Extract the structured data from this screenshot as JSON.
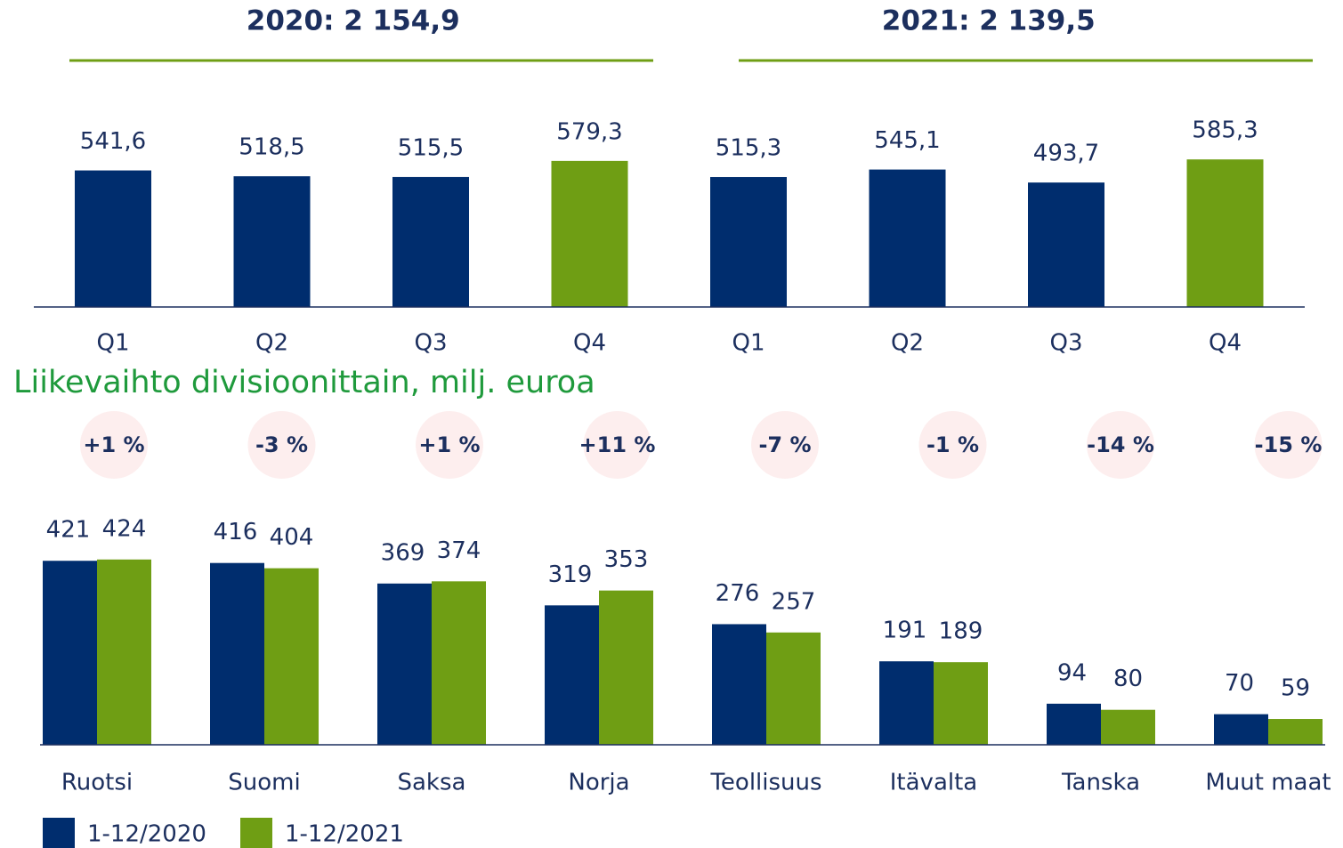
{
  "chart_data": [
    {
      "type": "bar",
      "group_labels": [
        "2020: 2 154,9",
        "2021: 2 139,5"
      ],
      "categories": [
        "Q1",
        "Q2",
        "Q3",
        "Q4",
        "Q1",
        "Q2",
        "Q3",
        "Q4"
      ],
      "values": [
        541.6,
        518.5,
        515.5,
        579.3,
        515.3,
        545.1,
        493.7,
        585.3
      ],
      "value_labels": [
        "541,6",
        "518,5",
        "515,5",
        "579,3",
        "515,3",
        "545,1",
        "493,7",
        "585,3"
      ],
      "colors": [
        "#002d6e",
        "#002d6e",
        "#002d6e",
        "#6f9e14",
        "#002d6e",
        "#002d6e",
        "#002d6e",
        "#6f9e14"
      ],
      "ylim": [
        0,
        600
      ]
    },
    {
      "type": "grouped_bar",
      "title": "Liikevaihto divisioonittain, milj. euroa",
      "categories": [
        "Ruotsi",
        "Suomi",
        "Saksa",
        "Norja",
        "Teollisuus",
        "Itävalta",
        "Tanska",
        "Muut maat"
      ],
      "annotations": [
        "+1 %",
        "-3 %",
        "+1 %",
        "+11 %",
        "-7 %",
        "-1 %",
        "-14 %",
        "-15 %"
      ],
      "series": [
        {
          "name": "1-12/2020",
          "color": "#002d6e",
          "values": [
            421,
            416,
            369,
            319,
            276,
            191,
            94,
            70
          ]
        },
        {
          "name": "1-12/2021",
          "color": "#6f9e14",
          "values": [
            424,
            404,
            374,
            353,
            257,
            189,
            80,
            59
          ]
        }
      ],
      "ylim": [
        0,
        450
      ]
    }
  ]
}
